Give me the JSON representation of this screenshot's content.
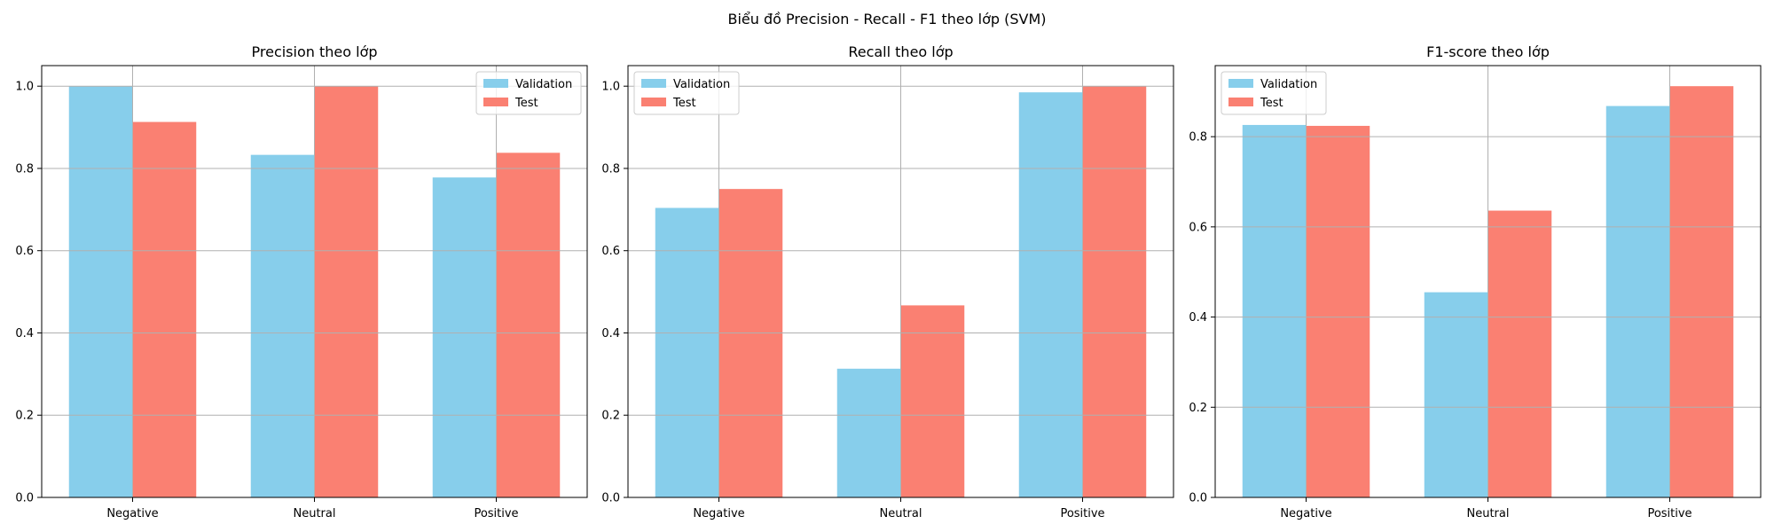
{
  "suptitle": "Biểu đồ Precision - Recall - F1 theo lớp (SVM)",
  "colors": {
    "validation": "#87CEEB",
    "test": "#FA8072",
    "grid": "#b0b0b0",
    "axis": "#000000"
  },
  "chart_data": [
    {
      "type": "bar",
      "title": "Precision theo lớp",
      "categories": [
        "Negative",
        "Neutral",
        "Positive"
      ],
      "series": [
        {
          "name": "Validation",
          "values": [
            1.0,
            0.833,
            0.778
          ]
        },
        {
          "name": "Test",
          "values": [
            0.913,
            1.0,
            0.838
          ]
        }
      ],
      "ylim": [
        0,
        1.05
      ],
      "yticks": [
        "0.0",
        "0.2",
        "0.4",
        "0.6",
        "0.8",
        "1.0"
      ],
      "grid": true,
      "legend": "top-right"
    },
    {
      "type": "bar",
      "title": "Recall theo lớp",
      "categories": [
        "Negative",
        "Neutral",
        "Positive"
      ],
      "series": [
        {
          "name": "Validation",
          "values": [
            0.704,
            0.313,
            0.985
          ]
        },
        {
          "name": "Test",
          "values": [
            0.75,
            0.467,
            1.0
          ]
        }
      ],
      "ylim": [
        0,
        1.05
      ],
      "yticks": [
        "0.0",
        "0.2",
        "0.4",
        "0.6",
        "0.8",
        "1.0"
      ],
      "grid": true,
      "legend": "top-left"
    },
    {
      "type": "bar",
      "title": "F1-score theo lớp",
      "categories": [
        "Negative",
        "Neutral",
        "Positive"
      ],
      "series": [
        {
          "name": "Validation",
          "values": [
            0.826,
            0.455,
            0.868
          ]
        },
        {
          "name": "Test",
          "values": [
            0.824,
            0.636,
            0.912
          ]
        }
      ],
      "ylim": [
        0,
        0.9576
      ],
      "yticks": [
        "0.0",
        "0.2",
        "0.4",
        "0.6",
        "0.8"
      ],
      "grid": true,
      "legend": "top-left"
    }
  ]
}
